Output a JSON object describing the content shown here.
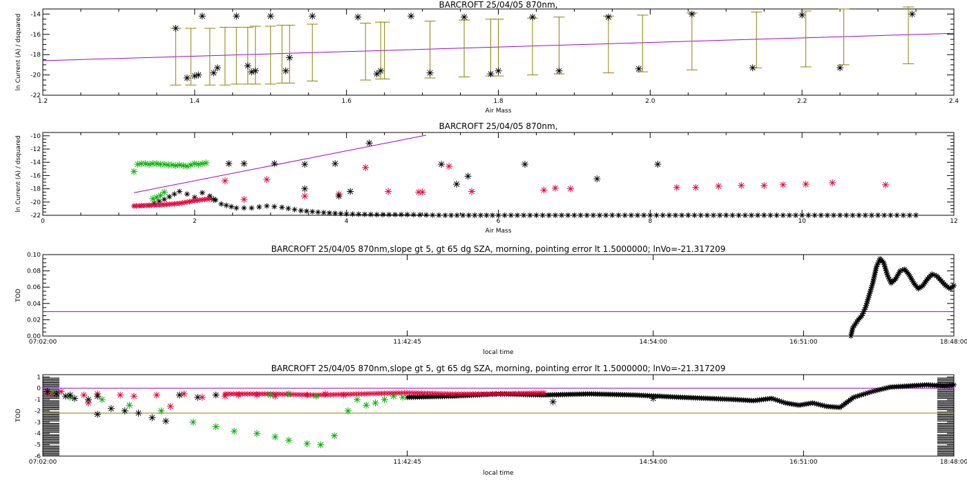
{
  "colors": {
    "black": "#000000",
    "red": "#e8003a",
    "green": "#00b000",
    "purple": "#a000e0",
    "olive": "#8a8000"
  },
  "chart_data": [
    {
      "type": "scatter",
      "title": "BARCROFT 25/04/05 870nm,",
      "xlabel": "Air Mass",
      "ylabel": "ln Current (A) / dsquared",
      "xlim": [
        1.2,
        2.4
      ],
      "ylim": [
        -22,
        -13.5
      ],
      "xticks": [
        1.2,
        1.4,
        1.6,
        1.8,
        2.0,
        2.2,
        2.4
      ],
      "xticklabels": [
        "1.2",
        "1.4",
        "1.6",
        "1.8",
        "2.0",
        "2.2",
        "2.4"
      ],
      "yticks": [
        -22,
        -20,
        -18,
        -16,
        -14
      ],
      "yticklabels": [
        "-22",
        "-20",
        "-18",
        "-16",
        "-14"
      ],
      "fit_line": {
        "color": "purple",
        "x": [
          1.2,
          2.4
        ],
        "y": [
          -18.6,
          -15.9
        ]
      },
      "errorbars": {
        "color": "olive",
        "x": [
          1.375,
          1.395,
          1.42,
          1.44,
          1.455,
          1.47,
          1.48,
          1.5,
          1.515,
          1.525,
          1.555,
          1.625,
          1.645,
          1.65,
          1.71,
          1.755,
          1.79,
          1.8,
          1.845,
          1.88,
          1.945,
          1.99,
          2.055,
          2.14,
          2.205,
          2.255,
          2.34
        ],
        "low": [
          -21.0,
          -21.0,
          -21.0,
          -21.0,
          -20.9,
          -20.9,
          -20.9,
          -20.9,
          -20.8,
          -20.8,
          -20.6,
          -20.5,
          -20.4,
          -20.4,
          -20.3,
          -20.2,
          -20.1,
          -20.1,
          -20.0,
          -19.9,
          -19.8,
          -19.7,
          -19.5,
          -19.3,
          -19.2,
          -19.0,
          -18.9
        ],
        "high": [
          -15.4,
          -15.4,
          -15.4,
          -15.3,
          -15.3,
          -15.3,
          -15.2,
          -15.2,
          -15.1,
          -15.1,
          -15.0,
          -14.9,
          -14.8,
          -14.8,
          -14.7,
          -14.6,
          -14.5,
          -14.5,
          -14.4,
          -14.3,
          -14.2,
          -14.1,
          -13.9,
          -13.8,
          -13.7,
          -13.5,
          -13.3
        ]
      },
      "points": {
        "color": "black",
        "x": [
          1.375,
          1.39,
          1.4,
          1.405,
          1.41,
          1.425,
          1.43,
          1.455,
          1.47,
          1.475,
          1.48,
          1.5,
          1.52,
          1.525,
          1.555,
          1.615,
          1.64,
          1.645,
          1.685,
          1.71,
          1.755,
          1.79,
          1.8,
          1.845,
          1.88,
          1.945,
          1.985,
          2.055,
          2.135,
          2.2,
          2.25,
          2.345
        ],
        "y": [
          -15.4,
          -20.3,
          -20.1,
          -20.0,
          -14.2,
          -19.8,
          -19.3,
          -14.2,
          -19.1,
          -19.7,
          -19.6,
          -14.2,
          -19.6,
          -18.3,
          -14.2,
          -14.3,
          -19.9,
          -19.6,
          -14.2,
          -19.8,
          -14.3,
          -19.9,
          -19.6,
          -14.3,
          -19.6,
          -14.3,
          -19.4,
          -14.0,
          -19.3,
          -14.1,
          -19.3,
          -14.0
        ]
      }
    },
    {
      "type": "scatter",
      "title": "BARCROFT 25/04/05 870nm,",
      "xlabel": "Air Mass",
      "ylabel": "ln Current (A) / dsquared",
      "xlim": [
        0,
        12
      ],
      "ylim": [
        -22,
        -9.5
      ],
      "xticks": [
        0,
        2,
        4,
        6,
        8,
        10,
        12
      ],
      "xticklabels": [
        "0",
        "2",
        "4",
        "6",
        "8",
        "10",
        "12"
      ],
      "yticks": [
        -22,
        -20,
        -18,
        -16,
        -14,
        -12,
        -10
      ],
      "yticklabels": [
        "-22",
        "-20",
        "-18",
        "-16",
        "-14",
        "-12",
        "-10"
      ],
      "fit_line": {
        "color": "purple",
        "x": [
          1.2,
          5.05
        ],
        "y": [
          -18.6,
          -9.9
        ]
      },
      "series": [
        {
          "color": "green",
          "x": [
            1.2,
            1.25,
            1.3,
            1.35,
            1.4,
            1.45,
            1.5,
            1.55,
            1.6,
            1.65,
            1.7,
            1.75,
            1.8,
            1.85,
            1.9,
            1.95,
            2.0,
            1.45,
            1.5,
            1.55,
            1.6,
            2.05,
            2.1,
            2.15
          ],
          "y": [
            -15.4,
            -14.3,
            -14.2,
            -14.2,
            -14.3,
            -14.2,
            -14.2,
            -14.3,
            -14.3,
            -14.4,
            -14.4,
            -14.5,
            -14.4,
            -14.5,
            -14.6,
            -14.4,
            -14.2,
            -19.5,
            -19.3,
            -19.0,
            -18.5,
            -14.3,
            -14.2,
            -14.1
          ]
        },
        {
          "color": "red",
          "x": [
            2.4,
            2.65,
            2.95,
            3.45,
            3.9,
            4.25,
            4.55,
            4.95,
            5.0,
            5.35,
            5.65,
            6.6,
            6.75,
            6.95,
            8.35,
            8.6,
            8.9,
            9.2,
            9.5,
            9.75,
            10.05,
            10.4,
            11.1
          ],
          "y": [
            -16.8,
            -19.6,
            -16.6,
            -19.1,
            -18.8,
            -14.8,
            -18.4,
            -18.5,
            -18.5,
            -14.6,
            -18.4,
            -18.2,
            -17.9,
            -18.0,
            -17.8,
            -17.8,
            -17.6,
            -17.5,
            -17.5,
            -17.4,
            -17.3,
            -17.1,
            -17.4
          ]
        },
        {
          "color": "black",
          "x": [
            2.45,
            2.65,
            3.05,
            3.45,
            3.85,
            4.3,
            5.25,
            5.45,
            5.6,
            6.35,
            7.3,
            8.1,
            2.25,
            3.45,
            3.9,
            4.05
          ],
          "y": [
            -14.2,
            -14.2,
            -14.2,
            -14.3,
            -14.2,
            -11.1,
            -14.3,
            -17.3,
            -16.1,
            -14.3,
            -16.5,
            -14.3,
            -19.6,
            -18.0,
            -19.1,
            -18.4
          ]
        }
      ],
      "curve": {
        "color": "black",
        "x": [
          1.2,
          1.4,
          1.6,
          1.8,
          1.9,
          2.0,
          2.1,
          2.2,
          2.35,
          2.55,
          2.75,
          2.95,
          3.15,
          3.4,
          3.7,
          4.0,
          4.4,
          4.8,
          5.3,
          6.0,
          7.0,
          8.0,
          9.0,
          10.0,
          11.0,
          11.5
        ],
        "y": [
          -20.6,
          -20.5,
          -19.6,
          -18.4,
          -18.8,
          -19.3,
          -18.6,
          -19.1,
          -20.3,
          -20.9,
          -20.9,
          -20.6,
          -20.8,
          -21.3,
          -21.6,
          -21.8,
          -21.9,
          -21.9,
          -22.0,
          -22.0,
          -22.0,
          -22.0,
          -22.0,
          -22.0,
          -22.0,
          -22.0
        ]
      },
      "curve_red": {
        "color": "red",
        "x": [
          1.2,
          1.4,
          1.6,
          1.8,
          2.0,
          2.2
        ],
        "y": [
          -20.6,
          -20.5,
          -20.4,
          -20.2,
          -19.8,
          -19.5
        ]
      }
    },
    {
      "type": "scatter",
      "title": "BARCROFT 25/04/05 870nm,slope gt 5, gt 65 dg SZA, morning, pointing error lt 1.5000000; lnVo=-21.317209",
      "xlabel": "local time",
      "ylabel": "TOD",
      "xlim": [
        0,
        1
      ],
      "ylim": [
        0,
        0.1
      ],
      "xticks": [
        0,
        0.4,
        0.67,
        0.835,
        1
      ],
      "xticklabels": [
        "07:02:00",
        "11:42:45",
        "14:54:00",
        "16:51:00",
        "18:48:00"
      ],
      "yticks": [
        0,
        0.02,
        0.04,
        0.06,
        0.08,
        0.1
      ],
      "yticklabels": [
        "0.00",
        "0.02",
        "0.04",
        "0.06",
        "0.08",
        "0.10"
      ],
      "hline": {
        "color": "purple",
        "y": 0.03
      },
      "curve": {
        "color": "black",
        "x": [
          0.887,
          0.889,
          0.892,
          0.895,
          0.899,
          0.903,
          0.907,
          0.911,
          0.915,
          0.919,
          0.923,
          0.927,
          0.931,
          0.936,
          0.941,
          0.946,
          0.951,
          0.956,
          0.961,
          0.966,
          0.971,
          0.976,
          0.981,
          0.986,
          0.991,
          0.996,
          1.0
        ],
        "y": [
          0.0,
          0.01,
          0.015,
          0.02,
          0.025,
          0.035,
          0.05,
          0.065,
          0.085,
          0.095,
          0.09,
          0.075,
          0.065,
          0.07,
          0.08,
          0.082,
          0.075,
          0.065,
          0.058,
          0.062,
          0.07,
          0.076,
          0.074,
          0.068,
          0.062,
          0.058,
          0.062
        ]
      }
    },
    {
      "type": "scatter",
      "title": "BARCROFT 25/04/05 870nm,slope gt 5, gt 65 dg SZA, morning, pointing error lt 1.5000000; lnVo=-21.317209",
      "xlabel": "local time",
      "ylabel": "TOD",
      "xlim": [
        0,
        1
      ],
      "ylim": [
        -6,
        1.2
      ],
      "xticks": [
        0,
        0.4,
        0.67,
        0.835,
        1
      ],
      "xticklabels": [
        "07:02:00",
        "11:42:45",
        "14:54:00",
        "16:51:00",
        "18:48:00"
      ],
      "yticks": [
        -6,
        -5,
        -4,
        -3,
        -2,
        -1,
        0,
        1
      ],
      "yticklabels": [
        "-6",
        "-5",
        "-4",
        "-3",
        "-2",
        "-1",
        "0",
        "1"
      ],
      "hlines": [
        {
          "color": "purple",
          "y": 0.0
        },
        {
          "color": "olive",
          "y": -2.2
        }
      ],
      "series": [
        {
          "color": "red",
          "x": [
            0.005,
            0.01,
            0.02,
            0.045,
            0.06,
            0.085,
            0.1,
            0.125,
            0.14,
            0.155,
            0.175,
            0.2,
            0.215,
            0.235,
            0.255,
            0.27,
            0.29,
            0.31,
            0.33,
            0.05
          ],
          "y": [
            -0.4,
            -0.5,
            -0.3,
            -0.6,
            -0.5,
            -0.6,
            -0.7,
            -0.6,
            -1.6,
            -0.5,
            -0.8,
            -0.7,
            -0.6,
            -0.6,
            -0.7,
            -0.5,
            -0.6,
            -0.5,
            -0.6,
            -1.3
          ]
        },
        {
          "color": "green",
          "x": [
            0.01,
            0.03,
            0.065,
            0.095,
            0.13,
            0.165,
            0.19,
            0.21,
            0.235,
            0.255,
            0.27,
            0.29,
            0.305,
            0.32,
            0.335,
            0.345,
            0.355,
            0.365,
            0.375,
            0.385,
            0.395,
            0.25,
            0.27,
            0.3
          ],
          "y": [
            -0.3,
            -0.8,
            -1.0,
            -1.5,
            -2.0,
            -3.0,
            -3.4,
            -3.8,
            -4.0,
            -4.3,
            -4.6,
            -4.9,
            -5.0,
            -4.2,
            -2.0,
            -1.0,
            -1.5,
            -1.3,
            -1.0,
            -0.7,
            -0.8,
            -0.6,
            -0.5,
            -0.7
          ]
        },
        {
          "color": "black",
          "x": [
            0.005,
            0.015,
            0.025,
            0.035,
            0.05,
            0.06,
            0.075,
            0.09,
            0.105,
            0.12,
            0.135,
            0.15,
            0.17,
            0.19,
            0.56,
            0.67,
            0.06,
            0.03
          ],
          "y": [
            -0.3,
            -0.5,
            -0.7,
            -0.9,
            -1.0,
            -2.3,
            -1.8,
            -2.0,
            -2.2,
            -2.6,
            -2.9,
            -0.6,
            -0.8,
            -0.6,
            -1.2,
            -0.9,
            -0.7,
            -0.6
          ]
        }
      ],
      "curve": {
        "color": "black",
        "x": [
          0.4,
          0.45,
          0.5,
          0.55,
          0.6,
          0.65,
          0.7,
          0.73,
          0.76,
          0.78,
          0.8,
          0.815,
          0.83,
          0.845,
          0.86,
          0.875,
          0.89,
          0.91,
          0.93,
          0.95,
          0.97,
          0.99,
          1.0
        ],
        "y": [
          -0.8,
          -0.7,
          -0.5,
          -0.6,
          -0.5,
          -0.6,
          -0.8,
          -0.9,
          -1.0,
          -1.1,
          -0.9,
          -1.3,
          -1.5,
          -1.3,
          -1.6,
          -1.7,
          -0.8,
          -0.3,
          0.1,
          0.2,
          0.3,
          0.2,
          0.3
        ]
      },
      "curve_red": {
        "color": "red",
        "x": [
          0.2,
          0.25,
          0.3,
          0.35,
          0.4,
          0.45,
          0.5,
          0.55
        ],
        "y": [
          -0.5,
          -0.5,
          -0.6,
          -0.5,
          -0.4,
          -0.5,
          -0.5,
          -0.4
        ]
      }
    }
  ]
}
